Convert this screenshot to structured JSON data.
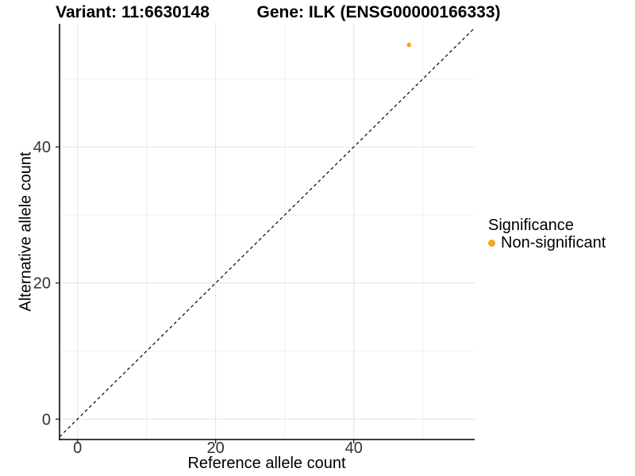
{
  "chart_data": {
    "type": "scatter",
    "title_left": "Variant: 11:6630148",
    "title_right": "Gene: ILK (ENSG00000166333)",
    "xlabel": "Reference allele count",
    "ylabel": "Alternative allele count",
    "xlim": [
      -2.6,
      57.5
    ],
    "ylim": [
      -3.0,
      58.1
    ],
    "x_ticks": [
      0,
      20,
      40
    ],
    "y_ticks": [
      0,
      20,
      40
    ],
    "x_minor_ticks": [
      10,
      30,
      50
    ],
    "y_minor_ticks": [
      10,
      30,
      50
    ],
    "grid": true,
    "identity_line": {
      "slope": 1,
      "intercept": 0,
      "style": "dashed"
    },
    "points": [
      {
        "x": 48,
        "y": 55,
        "series": "Non-significant"
      }
    ],
    "legend": {
      "position": "right",
      "title": "Significance",
      "items": [
        {
          "label": "Non-significant",
          "color": "#FBA226",
          "marker": "dot-icon"
        }
      ]
    },
    "colors": {
      "point": "#FBA226",
      "grid_major": "#E4E4E4",
      "grid_minor": "#F0F0F0",
      "axis": "#222222",
      "identity_line": "#000000",
      "tick_text": "#333333"
    }
  }
}
